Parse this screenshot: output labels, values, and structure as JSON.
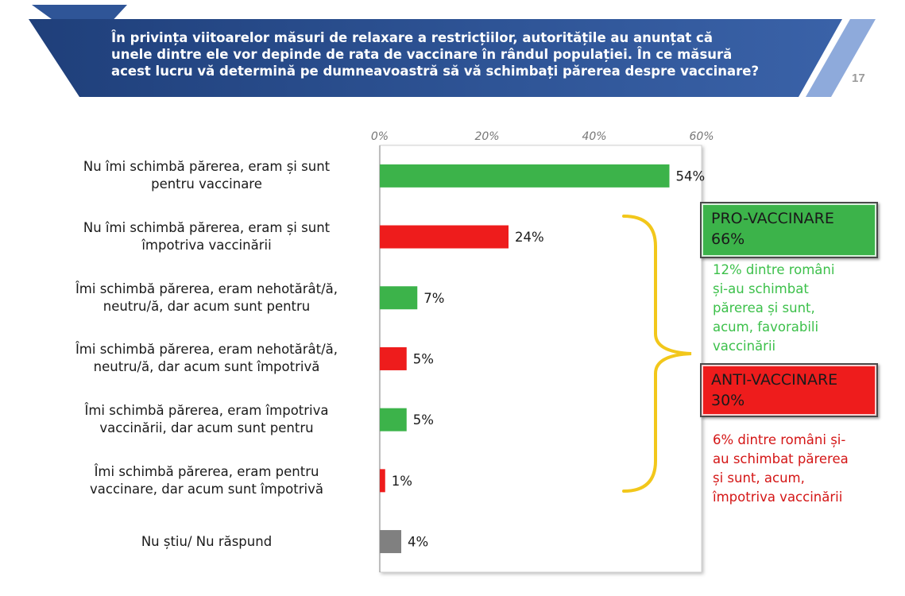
{
  "header": {
    "question_lines": [
      "În privința viitoarelor măsuri de relaxare a restricțiilor, autoritățile au anunțat că",
      "unele dintre ele vor depinde de rata de vaccinare în rândul populației. În ce măsură",
      "acest lucru vă determină pe dumneavoastră să vă schimbați părerea despre vaccinare?"
    ],
    "page_number": "17",
    "colors": {
      "banner": "#2f5597",
      "banner_light": "#8eaadb"
    }
  },
  "chart_data": {
    "type": "bar",
    "orientation": "horizontal",
    "x_ticks": [
      "0%",
      "20%",
      "40%",
      "60%"
    ],
    "xlim": [
      0,
      60
    ],
    "unit": "%",
    "grid": false,
    "categories": [
      {
        "lines": [
          "Nu îmi schimbă părerea, eram și sunt",
          "pentru vaccinare"
        ],
        "value": 54,
        "label": "54%",
        "color": "#3cb34a"
      },
      {
        "lines": [
          "Nu îmi schimbă părerea, eram și sunt",
          "împotriva vaccinării"
        ],
        "value": 24,
        "label": "24%",
        "color": "#ee1c1c"
      },
      {
        "lines": [
          "Îmi schimbă părerea, eram nehotărât/ă,",
          "neutru/ă, dar acum sunt pentru"
        ],
        "value": 7,
        "label": "7%",
        "color": "#3cb34a"
      },
      {
        "lines": [
          "Îmi schimbă părerea, eram nehotărât/ă,",
          "neutru/ă, dar acum sunt împotrivă"
        ],
        "value": 5,
        "label": "5%",
        "color": "#ee1c1c"
      },
      {
        "lines": [
          "Îmi schimbă părerea, eram împotriva",
          "vaccinării, dar acum sunt pentru"
        ],
        "value": 5,
        "label": "5%",
        "color": "#3cb34a"
      },
      {
        "lines": [
          "Îmi schimbă părerea, eram pentru",
          "vaccinare, dar acum sunt împotrivă"
        ],
        "value": 1,
        "label": "1%",
        "color": "#ee1c1c"
      },
      {
        "lines": [
          "Nu știu/ Nu răspund"
        ],
        "value": 4,
        "label": "4%",
        "color": "#808080"
      }
    ],
    "annotations": {
      "pro": {
        "title": "PRO-VACCINARE",
        "value": "66%",
        "note_lines": [
          "12% dintre români",
          "și-au schimbat",
          "părerea și sunt,",
          "acum, favorabili",
          "vaccinării"
        ],
        "color": "#3cb34a",
        "note_color": "#3cc04a"
      },
      "anti": {
        "title": "ANTI-VACCINARE",
        "value": "30%",
        "note_lines": [
          "6% dintre români și-",
          "au schimbat părerea",
          "și sunt, acum,",
          "împotriva vaccinării"
        ],
        "color": "#ee1c1c",
        "note_color": "#d41616"
      },
      "brace_color": "#f2c71b"
    }
  }
}
